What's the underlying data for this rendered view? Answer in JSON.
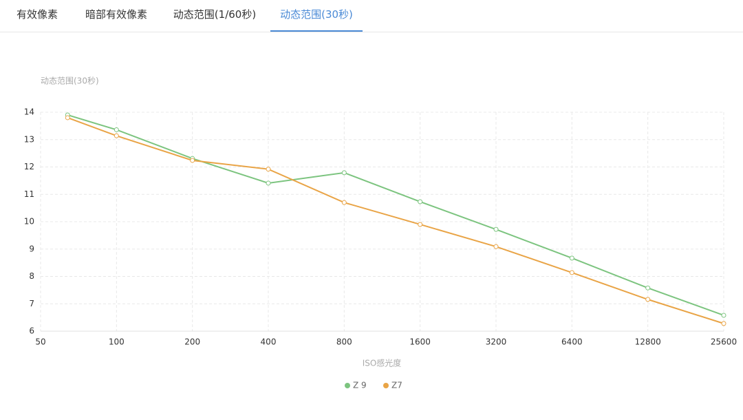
{
  "tabs": [
    "有效像素",
    "暗部有效像素",
    "动态范围(1/60秒)",
    "动态范围(30秒)"
  ],
  "chart_data": {
    "type": "line",
    "y_axis_name": "动态范围(30秒)",
    "x_label": "ISO感光度",
    "x": [
      64,
      100,
      200,
      400,
      800,
      1600,
      3200,
      6400,
      12800,
      25600
    ],
    "series": [
      {
        "name": "Z 9",
        "color": "#7cc47f",
        "values": [
          13.9,
          13.36,
          12.31,
          11.41,
          11.79,
          10.73,
          9.72,
          8.67,
          7.58,
          6.58
        ]
      },
      {
        "name": "Z7",
        "color": "#e9a446",
        "values": [
          13.8,
          13.14,
          12.24,
          11.92,
          10.7,
          9.9,
          9.09,
          8.14,
          7.16,
          6.28
        ]
      }
    ],
    "xscale": "log",
    "xlim": [
      50,
      25600
    ],
    "xticks": [
      50,
      100,
      200,
      400,
      800,
      1600,
      3200,
      6400,
      12800,
      25600
    ],
    "ylim": [
      6,
      14
    ],
    "yticks": [
      6,
      7,
      8,
      9,
      10,
      11,
      12,
      13,
      14
    ],
    "grid": true,
    "legend": "bottom"
  }
}
